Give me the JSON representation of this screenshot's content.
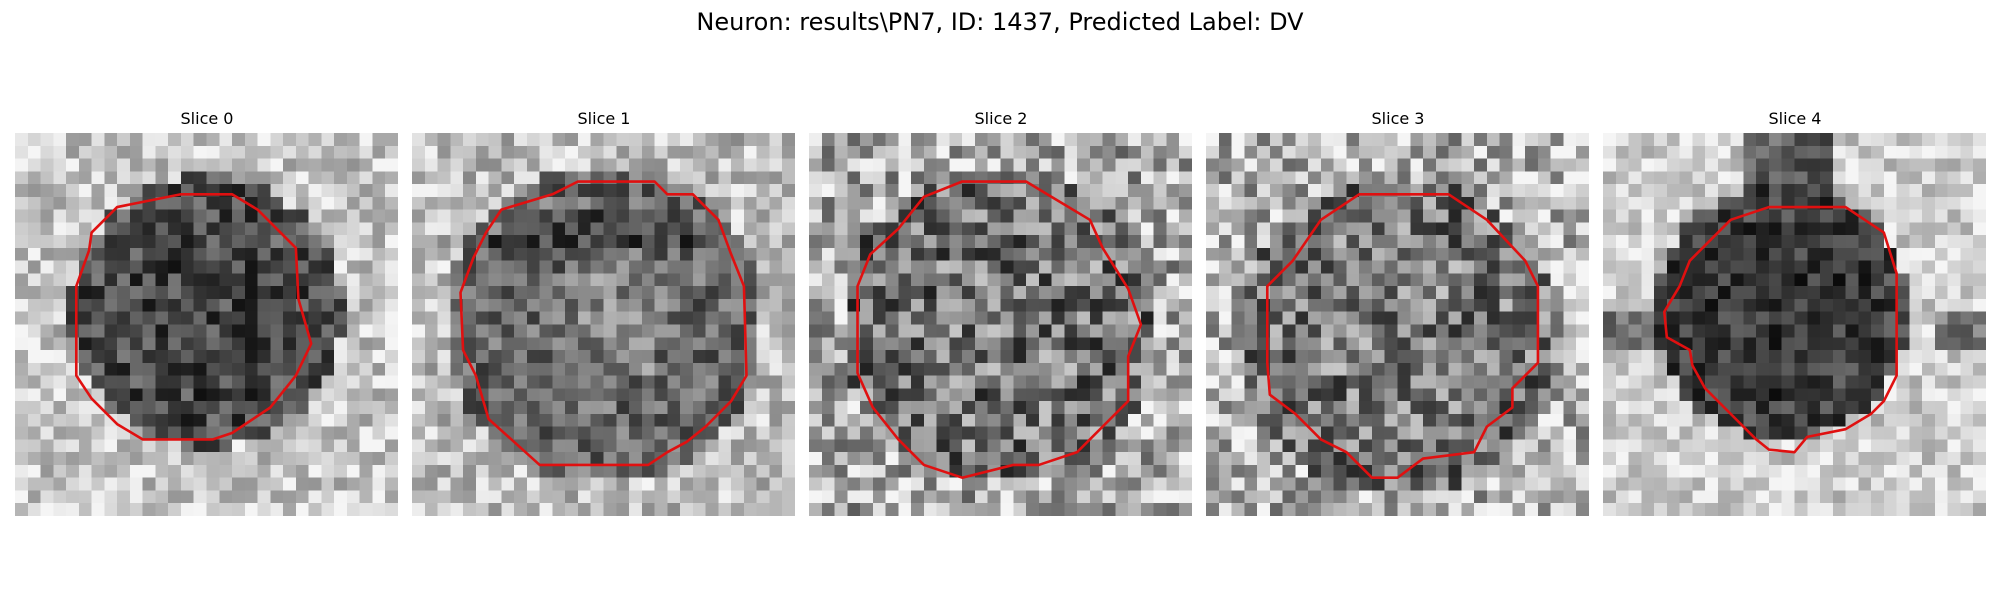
{
  "figure": {
    "title": "Neuron: results\\PN7, ID: 1437, Predicted Label: DV"
  },
  "panels": [
    {
      "title": "Slice 0",
      "image_name": "slice-0-image"
    },
    {
      "title": "Slice 1",
      "image_name": "slice-1-image"
    },
    {
      "title": "Slice 2",
      "image_name": "slice-2-image"
    },
    {
      "title": "Slice 3",
      "image_name": "slice-3-image"
    },
    {
      "title": "Slice 4",
      "image_name": "slice-4-image"
    }
  ],
  "colors": {
    "contour": "#e01010",
    "background": "#ffffff"
  }
}
